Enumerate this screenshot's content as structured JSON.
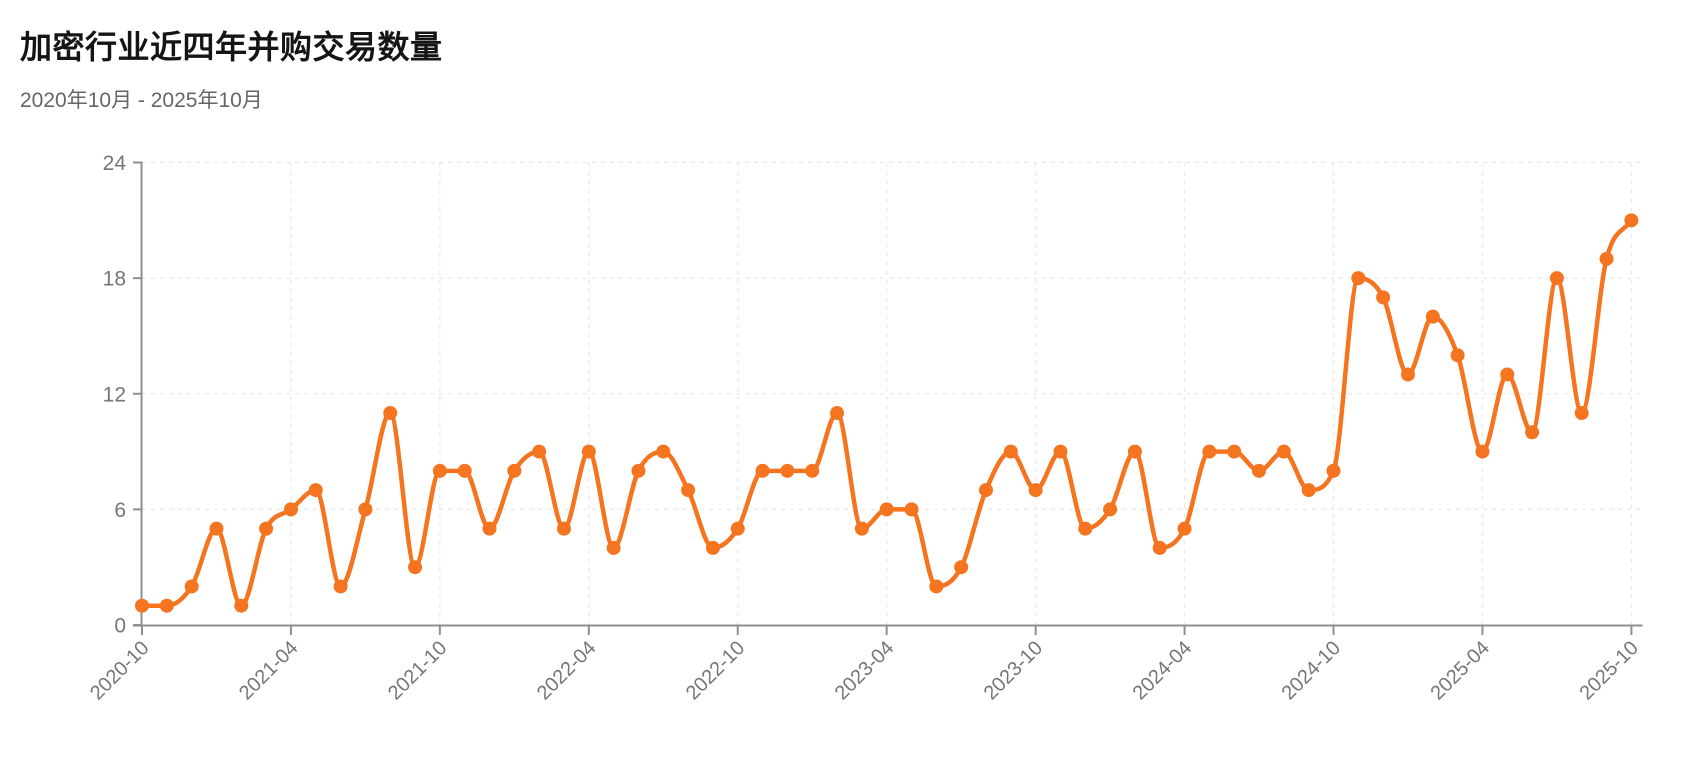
{
  "header": {
    "title": "加密行业近四年并购交易数量",
    "subtitle": "2020年10月 - 2025年10月"
  },
  "chart_data": {
    "type": "line",
    "title": "加密行业近四年并购交易数量",
    "subtitle": "2020年10月 - 2025年10月",
    "x_start_label": "2020-10",
    "x_end_label": "2025-10",
    "x_interval": "monthly",
    "x_tick_labels": [
      "2020-10",
      "2021-04",
      "2021-10",
      "2022-04",
      "2022-10",
      "2023-04",
      "2023-10",
      "2024-04",
      "2024-10",
      "2025-04",
      "2025-10"
    ],
    "x_tick_every": 6,
    "values": [
      1,
      1,
      2,
      5,
      1,
      5,
      6,
      7,
      2,
      6,
      11,
      3,
      8,
      8,
      5,
      8,
      9,
      5,
      9,
      4,
      8,
      9,
      7,
      4,
      5,
      8,
      8,
      8,
      11,
      5,
      6,
      6,
      2,
      3,
      7,
      9,
      7,
      9,
      5,
      6,
      9,
      4,
      5,
      9,
      9,
      8,
      9,
      7,
      8,
      18,
      17,
      13,
      16,
      14,
      9,
      13,
      10,
      18,
      11,
      19,
      21
    ],
    "y_ticks": [
      0,
      6,
      12,
      18,
      24
    ],
    "ylim": [
      0,
      24
    ],
    "grid": true,
    "legend": false,
    "point_markers": true,
    "colors": {
      "line": "#f5741f",
      "point": "#f5741f",
      "axis": "#8f8f8f",
      "tick_label": "#767676",
      "gridline": "#e9e9e9",
      "title": "#151515",
      "subtitle": "#666666",
      "background": "#ffffff"
    }
  }
}
